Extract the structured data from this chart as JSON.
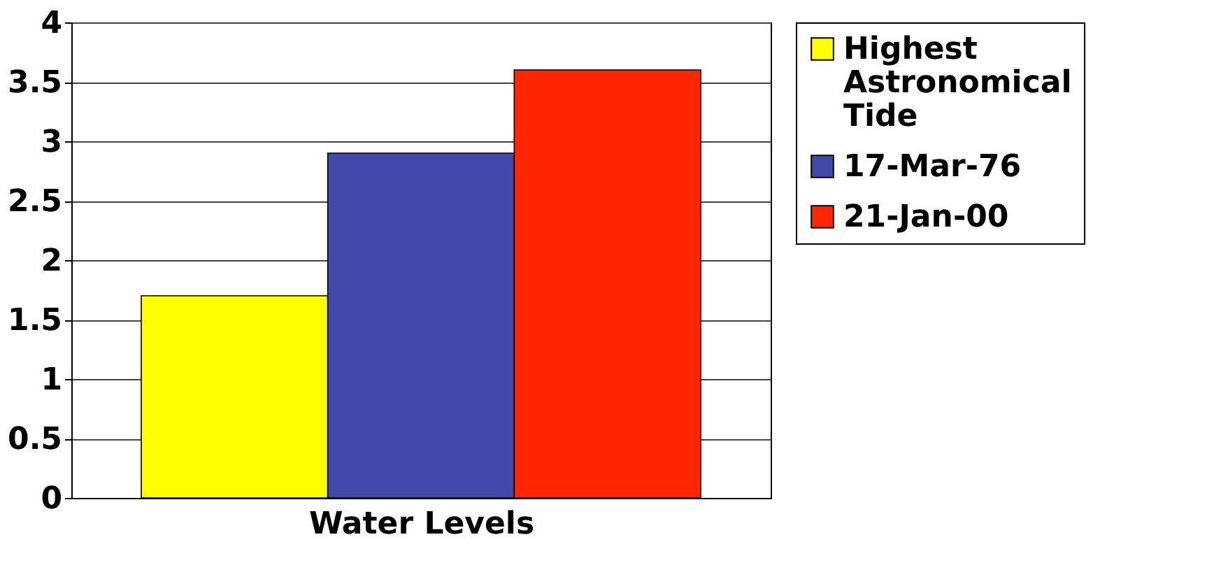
{
  "chart_data": {
    "type": "bar",
    "xlabel": "Water Levels",
    "categories": [
      null
    ],
    "series": [
      {
        "name": "Highest Astronomical Tide",
        "color": "#ffff00",
        "values": [
          1.7
        ]
      },
      {
        "name": "17-Mar-76",
        "color": "#4349a9",
        "values": [
          2.9
        ]
      },
      {
        "name": "21-Jan-00",
        "color": "#ff2600",
        "values": [
          3.6
        ]
      }
    ],
    "ylim": [
      0,
      4
    ],
    "yticks": [
      0,
      0.5,
      1,
      1.5,
      2,
      2.5,
      3,
      3.5,
      4
    ],
    "grid": "y",
    "legend": "right"
  }
}
